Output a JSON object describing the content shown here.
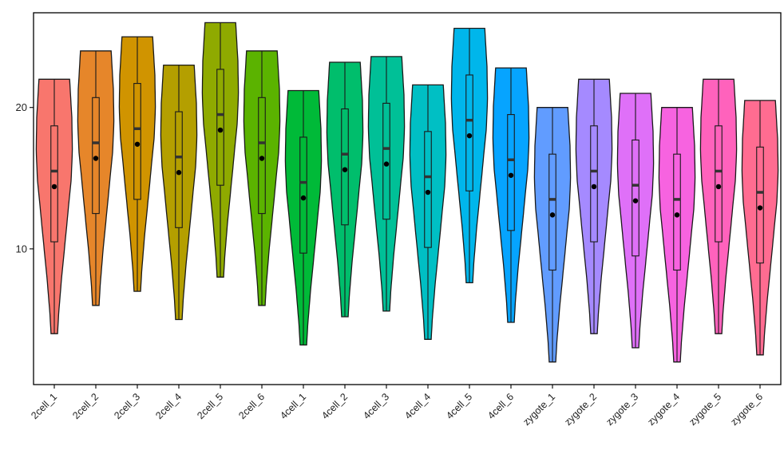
{
  "chart_data": {
    "type": "violin",
    "title": "",
    "xlabel": "",
    "ylabel": "",
    "ylim": [
      0.4,
      26.7
    ],
    "yticks": [
      10,
      20
    ],
    "grid": false,
    "legend": "none",
    "categories": [
      "2cell_1",
      "2cell_2",
      "2cell_3",
      "2cell_4",
      "2cell_5",
      "2cell_6",
      "4cell_1",
      "4cell_2",
      "4cell_3",
      "4cell_4",
      "4cell_5",
      "4cell_6",
      "zygote_1",
      "zygote_2",
      "zygote_3",
      "zygote_4",
      "zygote_5",
      "zygote_6"
    ],
    "colors": [
      "#F8766D",
      "#E6862A",
      "#D09400",
      "#B49F00",
      "#8FAA00",
      "#5BB300",
      "#00BA38",
      "#00BE6C",
      "#00C097",
      "#00BFC4",
      "#00B6EB",
      "#06A4FF",
      "#619CFF",
      "#A58AFF",
      "#DF70F8",
      "#F763E0",
      "#FF62BC",
      "#FF6C91"
    ],
    "series": [
      {
        "min": 4.0,
        "max": 22.0,
        "q1": 10.5,
        "median": 15.5,
        "q3": 18.7,
        "mean": 14.4
      },
      {
        "min": 6.0,
        "max": 24.0,
        "q1": 12.5,
        "median": 17.5,
        "q3": 20.7,
        "mean": 16.4
      },
      {
        "min": 7.0,
        "max": 25.0,
        "q1": 13.5,
        "median": 18.5,
        "q3": 21.7,
        "mean": 17.4
      },
      {
        "min": 5.0,
        "max": 23.0,
        "q1": 11.5,
        "median": 16.5,
        "q3": 19.7,
        "mean": 15.4
      },
      {
        "min": 8.0,
        "max": 26.0,
        "q1": 14.5,
        "median": 19.5,
        "q3": 22.7,
        "mean": 18.4
      },
      {
        "min": 6.0,
        "max": 24.0,
        "q1": 12.5,
        "median": 17.5,
        "q3": 20.7,
        "mean": 16.4
      },
      {
        "min": 3.2,
        "max": 21.2,
        "q1": 9.7,
        "median": 14.7,
        "q3": 17.9,
        "mean": 13.6
      },
      {
        "min": 5.2,
        "max": 23.2,
        "q1": 11.7,
        "median": 16.7,
        "q3": 19.9,
        "mean": 15.6
      },
      {
        "min": 5.6,
        "max": 23.6,
        "q1": 12.1,
        "median": 17.1,
        "q3": 20.3,
        "mean": 16.0
      },
      {
        "min": 3.6,
        "max": 21.6,
        "q1": 10.1,
        "median": 15.1,
        "q3": 18.3,
        "mean": 14.0
      },
      {
        "min": 7.6,
        "max": 25.6,
        "q1": 14.1,
        "median": 19.1,
        "q3": 22.3,
        "mean": 18.0
      },
      {
        "min": 4.8,
        "max": 22.8,
        "q1": 11.3,
        "median": 16.3,
        "q3": 19.5,
        "mean": 15.2
      },
      {
        "min": 2.0,
        "max": 20.0,
        "q1": 8.5,
        "median": 13.5,
        "q3": 16.7,
        "mean": 12.4
      },
      {
        "min": 4.0,
        "max": 22.0,
        "q1": 10.5,
        "median": 15.5,
        "q3": 18.7,
        "mean": 14.4
      },
      {
        "min": 3.0,
        "max": 21.0,
        "q1": 9.5,
        "median": 14.5,
        "q3": 17.7,
        "mean": 13.4
      },
      {
        "min": 2.0,
        "max": 20.0,
        "q1": 8.5,
        "median": 13.5,
        "q3": 16.7,
        "mean": 12.4
      },
      {
        "min": 4.0,
        "max": 22.0,
        "q1": 10.5,
        "median": 15.5,
        "q3": 18.7,
        "mean": 14.4
      },
      {
        "min": 2.5,
        "max": 20.5,
        "q1": 9.0,
        "median": 14.0,
        "q3": 17.2,
        "mean": 12.9
      }
    ]
  }
}
